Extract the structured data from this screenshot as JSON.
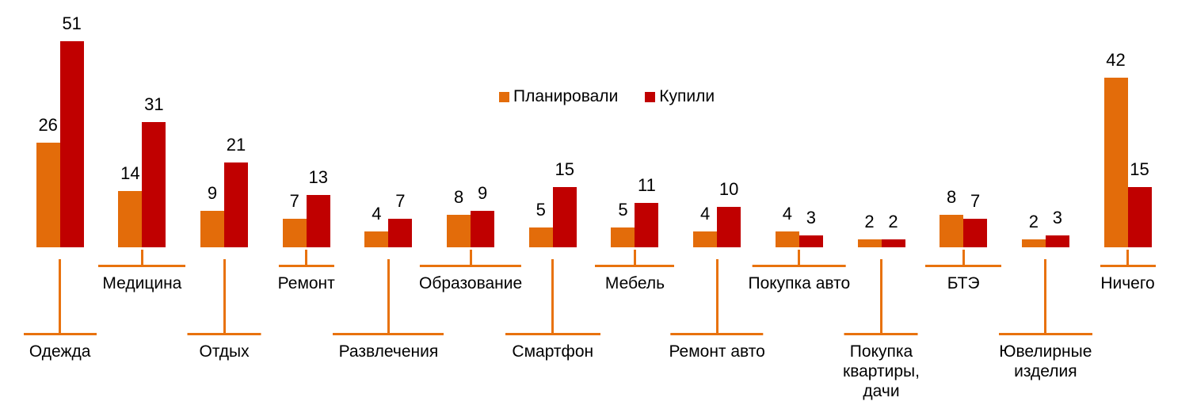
{
  "chart_data": {
    "type": "bar",
    "title": "",
    "subtitle": "",
    "categories": [
      "Одежда",
      "Медицина",
      "Отдых",
      "Ремонт",
      "Развлечения",
      "Образование",
      "Смартфон",
      "Мебель",
      "Ремонт авто",
      "Покупка авто",
      "Покупка квартиры, дачи",
      "БТЭ",
      "Ювелирные изделия",
      "Ничего"
    ],
    "category_label_lines": [
      [
        "Одежда"
      ],
      [
        "Медицина"
      ],
      [
        "Отдых"
      ],
      [
        "Ремонт"
      ],
      [
        "Развлечения"
      ],
      [
        "Образование"
      ],
      [
        "Смартфон"
      ],
      [
        "Мебель"
      ],
      [
        "Ремонт авто"
      ],
      [
        "Покупка авто"
      ],
      [
        "Покупка",
        "квартиры,",
        "дачи"
      ],
      [
        "БТЭ"
      ],
      [
        "Ювелирные",
        "изделия"
      ],
      [
        "Ничего"
      ]
    ],
    "series": [
      {
        "name": "Планировали",
        "color": "#E36C0A",
        "values": [
          26,
          14,
          9,
          7,
          4,
          8,
          5,
          5,
          4,
          4,
          2,
          8,
          2,
          42
        ]
      },
      {
        "name": "Купили",
        "color": "#C00000",
        "values": [
          51,
          31,
          21,
          13,
          7,
          9,
          15,
          11,
          10,
          3,
          2,
          7,
          3,
          15
        ]
      }
    ],
    "legend": {
      "position": "top-center",
      "items": [
        "Планировали",
        "Купили"
      ]
    },
    "data_labels": true,
    "axes": {
      "y_axis_visible": false,
      "x_axis_visible": false,
      "gridlines": false
    },
    "ylim": [
      0,
      51
    ],
    "label_rows": [
      "low",
      "high",
      "low",
      "high",
      "low",
      "high",
      "low",
      "high",
      "low",
      "high",
      "low",
      "high",
      "low",
      "high"
    ],
    "leader_line_widths": [
      92,
      110,
      93,
      70,
      140,
      128,
      120,
      100,
      117,
      118,
      93,
      96,
      118,
      70
    ],
    "leader_line_color": "#E8720E",
    "text_color": "#000000",
    "background": "#FFFFFF"
  }
}
